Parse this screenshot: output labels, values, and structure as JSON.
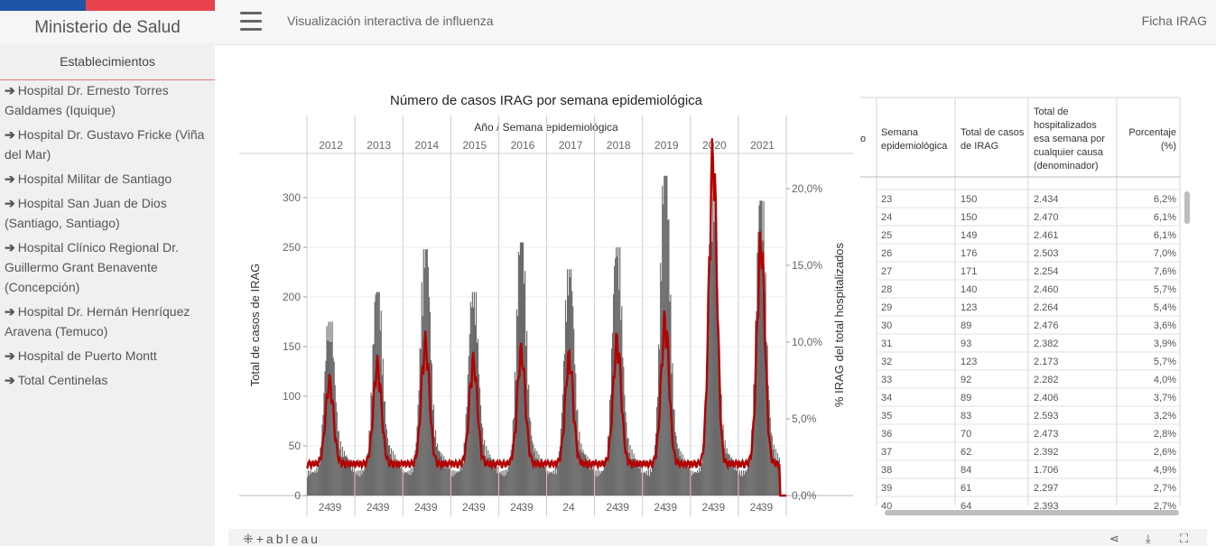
{
  "sidebar": {
    "brand": "Ministerio de Salud",
    "header": "Establecimientos",
    "items": [
      {
        "label": "Hospital Dr. Ernesto Torres Galdames (Iquique)"
      },
      {
        "label": "Hospital Dr. Gustavo Fricke (Viña del Mar)"
      },
      {
        "label": "Hospital Militar de Santiago"
      },
      {
        "label": "Hospital San Juan de Dios (Santiago, Santiago)"
      },
      {
        "label": "Hospital Clínico Regional Dr. Guillermo Grant Benavente (Concepción)"
      },
      {
        "label": "Hospital Dr. Hernán Henríquez Aravena (Temuco)"
      },
      {
        "label": "Hospital de Puerto Montt"
      },
      {
        "label": "Total Centinelas"
      }
    ]
  },
  "topbar": {
    "title": "Visualización interactiva de influenza",
    "ficha": "Ficha IRAG"
  },
  "chart_data": {
    "type": "bar",
    "title": "Número de casos IRAG por semana epidemiológica",
    "column_header": "Año / Semana epidemiológica",
    "years": [
      "2012",
      "2013",
      "2014",
      "2015",
      "2016",
      "2017",
      "2018",
      "2019",
      "2020",
      "2021"
    ],
    "week_ticks": [
      "24",
      "39"
    ],
    "week_ticks_2017": [
      "24"
    ],
    "ylabel": "Total de casos de IRAG",
    "y2label": "% IRAG del total hospitalizados",
    "yticks": [
      "0",
      "50",
      "100",
      "150",
      "200",
      "250",
      "300"
    ],
    "y2ticks": [
      "0,0%",
      "5,0%",
      "10,0%",
      "15,0%",
      "20,0%"
    ],
    "ylim": [
      0,
      340
    ],
    "y2lim": [
      0,
      0.22
    ],
    "bar_color": "#6b6b6b",
    "line_color": "#b30000",
    "peaks": [
      {
        "year": "2012",
        "cases": 175,
        "pct": 0.071
      },
      {
        "year": "2013",
        "cases": 205,
        "pct": 0.082
      },
      {
        "year": "2014",
        "cases": 248,
        "pct": 0.096
      },
      {
        "year": "2015",
        "cases": 205,
        "pct": 0.084
      },
      {
        "year": "2016",
        "cases": 255,
        "pct": 0.09
      },
      {
        "year": "2017",
        "cases": 228,
        "pct": 0.086
      },
      {
        "year": "2018",
        "cases": 250,
        "pct": 0.097
      },
      {
        "year": "2019",
        "cases": 322,
        "pct": 0.11
      },
      {
        "year": "2020",
        "cases": 300,
        "pct": 0.213
      },
      {
        "year": "2021",
        "cases": 297,
        "pct": 0.158
      }
    ]
  },
  "table": {
    "headers": [
      "Semana epidemiológica",
      "Total de casos de IRAG",
      "Total de hospitalizados esa semana por cualquier causa (denominador)",
      "Porcentaje (%)"
    ],
    "first_col_cut": "o",
    "rows": [
      [
        "23",
        "150",
        "2.434",
        "6,2%"
      ],
      [
        "24",
        "150",
        "2.470",
        "6,1%"
      ],
      [
        "25",
        "149",
        "2.461",
        "6,1%"
      ],
      [
        "26",
        "176",
        "2.503",
        "7,0%"
      ],
      [
        "27",
        "171",
        "2.254",
        "7,6%"
      ],
      [
        "28",
        "140",
        "2.460",
        "5,7%"
      ],
      [
        "29",
        "123",
        "2.264",
        "5,4%"
      ],
      [
        "30",
        "89",
        "2.476",
        "3,6%"
      ],
      [
        "31",
        "93",
        "2.382",
        "3,9%"
      ],
      [
        "32",
        "123",
        "2.173",
        "5,7%"
      ],
      [
        "33",
        "92",
        "2.282",
        "4,0%"
      ],
      [
        "34",
        "89",
        "2.406",
        "3,7%"
      ],
      [
        "35",
        "83",
        "2.593",
        "3,2%"
      ],
      [
        "36",
        "70",
        "2.473",
        "2,8%"
      ],
      [
        "37",
        "62",
        "2.392",
        "2,6%"
      ],
      [
        "38",
        "84",
        "1.706",
        "4,9%"
      ],
      [
        "39",
        "61",
        "2.297",
        "2,7%"
      ],
      [
        "40",
        "64",
        "2.393",
        "2,7%"
      ]
    ]
  },
  "footer": {
    "logo": "+ableau"
  }
}
